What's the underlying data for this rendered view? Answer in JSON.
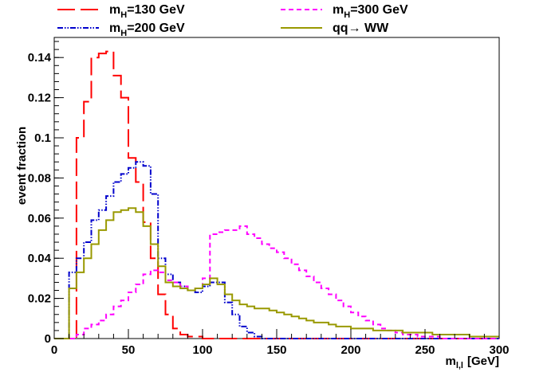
{
  "chart_data": {
    "type": "step",
    "title": "",
    "xlabel": "m",
    "xlabel_sub": "l,l",
    "xlabel_unit": "[GeV]",
    "ylabel": "event fraction",
    "xlim": [
      0,
      300
    ],
    "ylim": [
      0,
      0.15
    ],
    "x_ticks": [
      0,
      50,
      100,
      150,
      200,
      250,
      300
    ],
    "y_ticks": [
      0,
      0.02,
      0.04,
      0.06,
      0.08,
      0.1,
      0.12,
      0.14
    ],
    "y_tick_labels": [
      "0",
      "0.02",
      "0.04",
      "0.06",
      "0.08",
      "0.1",
      "0.12",
      "0.14"
    ],
    "grid": false,
    "legend_position": "top",
    "bin_width": 5,
    "series": [
      {
        "name_main": "m",
        "name_sub": "H",
        "name_rest": "=130 GeV",
        "color": "#ff0000",
        "style": "long-dash",
        "legend_slot": 0,
        "edges": [
          0,
          5,
          10,
          15,
          20,
          25,
          30,
          35,
          40,
          45,
          50,
          55,
          60,
          65,
          70,
          75,
          80,
          85,
          90,
          95,
          100,
          105,
          110,
          115,
          120,
          125,
          130,
          135,
          140,
          145,
          150,
          155,
          160,
          165,
          170,
          175,
          180,
          185,
          190,
          195,
          200,
          205,
          210,
          215,
          220,
          225,
          230,
          235,
          240,
          245,
          250,
          255,
          260,
          265,
          270,
          275,
          280,
          285,
          290,
          295,
          300
        ],
        "values": [
          0,
          0,
          0,
          0.1,
          0.118,
          0.14,
          0.142,
          0.143,
          0.131,
          0.12,
          0.09,
          0.078,
          0.058,
          0.04,
          0.022,
          0.012,
          0.005,
          0.002,
          0.001,
          0.001,
          0,
          0,
          0,
          0,
          0,
          0,
          0,
          0,
          0,
          0,
          0,
          0,
          0,
          0,
          0,
          0,
          0,
          0,
          0,
          0,
          0,
          0,
          0,
          0,
          0,
          0,
          0,
          0,
          0,
          0,
          0,
          0,
          0,
          0,
          0,
          0,
          0,
          0,
          0,
          0
        ]
      },
      {
        "name_main": "m",
        "name_sub": "H",
        "name_rest": "=200 GeV",
        "color": "#0000cc",
        "style": "dash-dot-dot",
        "legend_slot": 1,
        "edges": [
          0,
          5,
          10,
          15,
          20,
          25,
          30,
          35,
          40,
          45,
          50,
          55,
          60,
          65,
          70,
          75,
          80,
          85,
          90,
          95,
          100,
          105,
          110,
          115,
          120,
          125,
          130,
          135,
          140,
          145,
          150,
          155,
          160,
          165,
          170,
          175,
          180,
          185,
          190,
          195,
          200,
          205,
          210,
          215,
          220,
          225,
          230,
          235,
          240,
          245,
          250,
          255,
          260,
          265,
          270,
          275,
          280,
          285,
          290,
          295,
          300
        ],
        "values": [
          0,
          0,
          0.033,
          0.04,
          0.048,
          0.059,
          0.064,
          0.071,
          0.078,
          0.082,
          0.085,
          0.088,
          0.086,
          0.072,
          0.04,
          0.032,
          0.028,
          0.026,
          0.024,
          0.023,
          0.026,
          0.028,
          0.028,
          0.018,
          0.012,
          0.006,
          0.003,
          0.001,
          0,
          0,
          0,
          0,
          0,
          0,
          0,
          0,
          0,
          0,
          0,
          0,
          0,
          0,
          0,
          0,
          0,
          0,
          0,
          0,
          0,
          0,
          0,
          0,
          0,
          0,
          0,
          0,
          0,
          0,
          0,
          0
        ]
      },
      {
        "name_main": "m",
        "name_sub": "H",
        "name_rest": "=300 GeV",
        "color": "#ff00ff",
        "style": "short-dash",
        "legend_slot": 2,
        "edges": [
          0,
          5,
          10,
          15,
          20,
          25,
          30,
          35,
          40,
          45,
          50,
          55,
          60,
          65,
          70,
          75,
          80,
          85,
          90,
          95,
          100,
          105,
          110,
          115,
          120,
          125,
          130,
          135,
          140,
          145,
          150,
          155,
          160,
          165,
          170,
          175,
          180,
          185,
          190,
          195,
          200,
          205,
          210,
          215,
          220,
          225,
          230,
          235,
          240,
          245,
          250,
          255,
          260,
          265,
          270,
          275,
          280,
          285,
          290,
          295,
          300
        ],
        "values": [
          0,
          0,
          0,
          0.002,
          0.005,
          0.007,
          0.009,
          0.012,
          0.016,
          0.019,
          0.023,
          0.027,
          0.032,
          0.034,
          0.033,
          0.029,
          0.028,
          0.026,
          0.024,
          0.025,
          0.03,
          0.052,
          0.053,
          0.054,
          0.054,
          0.056,
          0.052,
          0.05,
          0.047,
          0.045,
          0.043,
          0.04,
          0.037,
          0.034,
          0.031,
          0.028,
          0.025,
          0.022,
          0.019,
          0.016,
          0.013,
          0.011,
          0.009,
          0.007,
          0.005,
          0.004,
          0.003,
          0.002,
          0.002,
          0.001,
          0.001,
          0.001,
          0,
          0,
          0,
          0,
          0,
          0,
          0,
          0
        ]
      },
      {
        "name_main": "qq",
        "name_sub": "",
        "name_rest": "→ WW",
        "color": "#999900",
        "style": "solid",
        "legend_slot": 3,
        "edges": [
          0,
          5,
          10,
          15,
          20,
          25,
          30,
          35,
          40,
          45,
          50,
          55,
          60,
          65,
          70,
          75,
          80,
          85,
          90,
          95,
          100,
          105,
          110,
          115,
          120,
          125,
          130,
          135,
          140,
          145,
          150,
          155,
          160,
          165,
          170,
          175,
          180,
          185,
          190,
          195,
          200,
          205,
          210,
          215,
          220,
          225,
          230,
          235,
          240,
          245,
          250,
          255,
          260,
          265,
          270,
          275,
          280,
          285,
          290,
          295,
          300
        ],
        "values": [
          0,
          0,
          0.025,
          0.033,
          0.04,
          0.047,
          0.054,
          0.059,
          0.063,
          0.064,
          0.065,
          0.063,
          0.056,
          0.047,
          0.036,
          0.028,
          0.026,
          0.025,
          0.024,
          0.025,
          0.027,
          0.03,
          0.027,
          0.022,
          0.019,
          0.017,
          0.016,
          0.015,
          0.015,
          0.014,
          0.013,
          0.012,
          0.011,
          0.01,
          0.009,
          0.008,
          0.008,
          0.007,
          0.006,
          0.006,
          0.005,
          0.005,
          0.005,
          0.004,
          0.004,
          0.004,
          0.004,
          0.003,
          0.003,
          0.003,
          0.003,
          0.002,
          0.002,
          0.002,
          0.002,
          0.002,
          0.001,
          0.001,
          0.001,
          0.001
        ]
      }
    ]
  }
}
